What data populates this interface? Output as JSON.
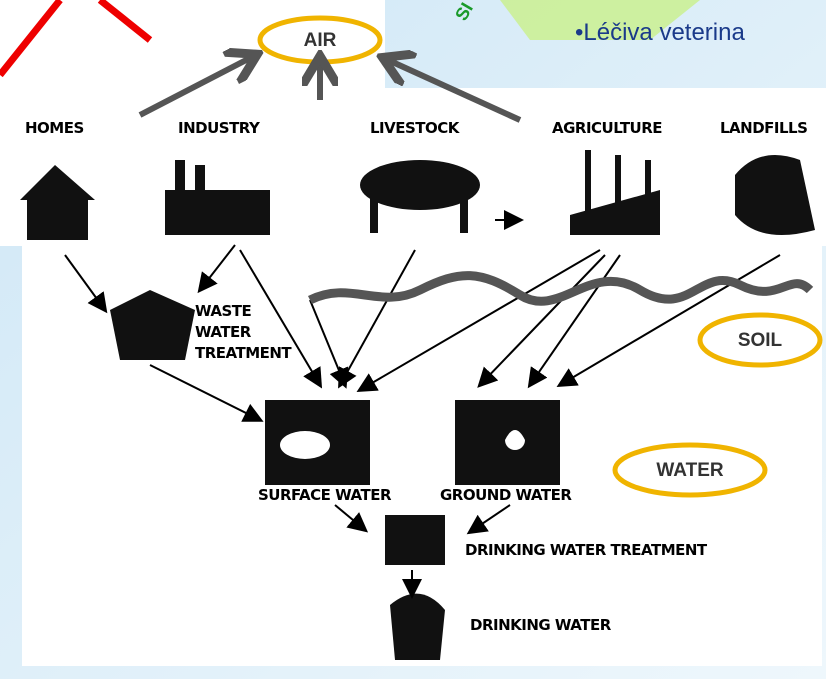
{
  "banner": {
    "slogan": "SI",
    "bullet": "•Léčiva veterina"
  },
  "nodes": {
    "air": "AIR",
    "sources": [
      "HOMES",
      "INDUSTRY",
      "LIVESTOCK",
      "AGRICULTURE",
      "LANDFILLS"
    ],
    "waste_water_treatment": [
      "WASTE",
      "WATER",
      "TREATMENT"
    ],
    "surface_water": "SURFACE WATER",
    "ground_water": "GROUND WATER",
    "drinking_water_treatment": "DRINKING WATER TREATMENT",
    "drinking_water": "DRINKING WATER",
    "soil": "SOIL",
    "water": "WATER"
  }
}
